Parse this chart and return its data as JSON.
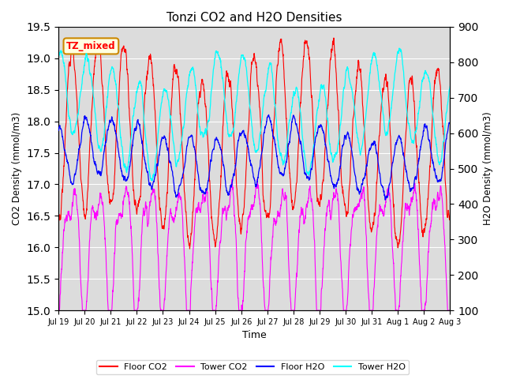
{
  "title": "Tonzi CO2 and H2O Densities",
  "xlabel": "Time",
  "ylabel_left": "CO2 Density (mmol/m3)",
  "ylabel_right": "H2O Density (mmol/m3)",
  "ylim_left": [
    15.0,
    19.5
  ],
  "ylim_right": [
    100,
    900
  ],
  "annotation_text": "TZ_mixed",
  "annotation_facecolor": "lightyellow",
  "annotation_edgecolor": "#cc8800",
  "legend_entries": [
    "Floor CO2",
    "Tower CO2",
    "Floor H2O",
    "Tower H2O"
  ],
  "legend_colors": [
    "red",
    "magenta",
    "blue",
    "cyan"
  ],
  "xtick_labels": [
    "Jul 19",
    "Jul 20",
    "Jul 21",
    "Jul 22",
    "Jul 23",
    "Jul 24",
    "Jul 25",
    "Jul 26",
    "Jul 27",
    "Jul 28",
    "Jul 29",
    "Jul 30",
    "Jul 31",
    "Aug 1",
    "Aug 2",
    "Aug 3"
  ],
  "n_points": 2000,
  "time_days": 15
}
